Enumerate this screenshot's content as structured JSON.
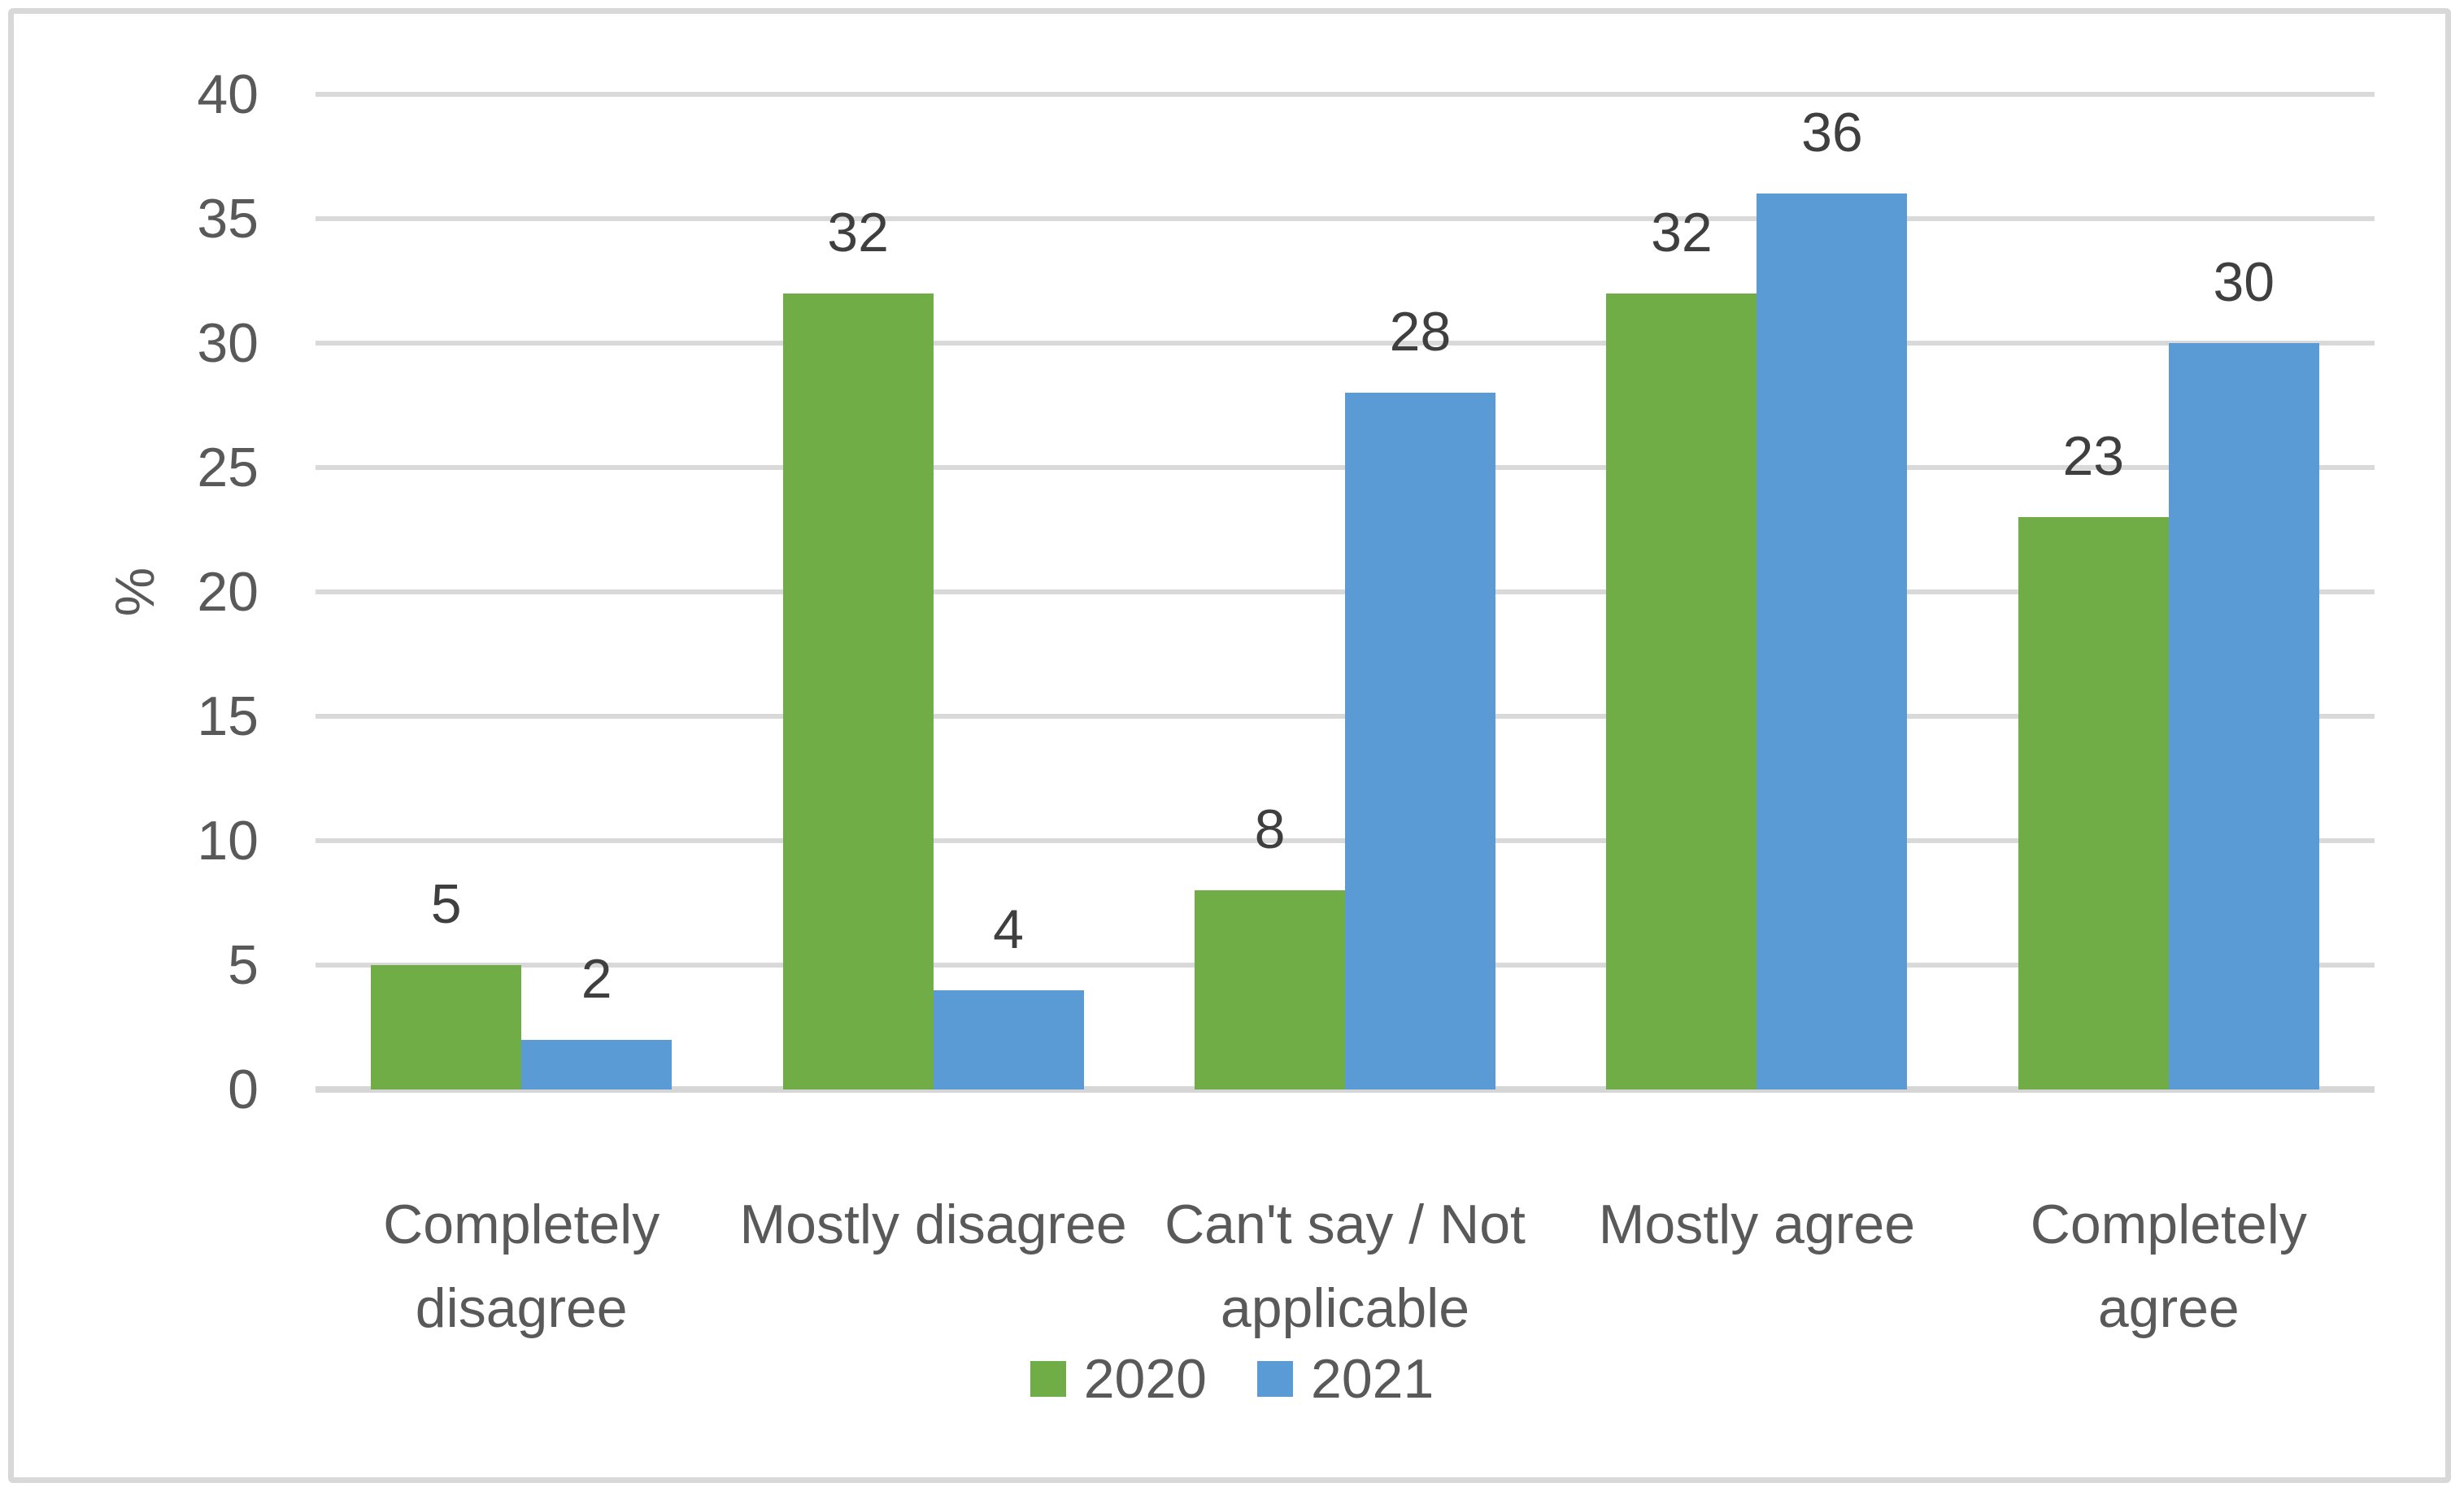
{
  "chart_data": {
    "type": "bar",
    "title": "",
    "xlabel": "",
    "ylabel": "%",
    "ylim": [
      0,
      40
    ],
    "yticks": [
      0,
      5,
      10,
      15,
      20,
      25,
      30,
      35,
      40
    ],
    "grid": true,
    "data_labels": true,
    "legend_position": "bottom-center",
    "categories": [
      "Completely\ndisagree",
      "Mostly disagree",
      "Can't say / Not\napplicable",
      "Mostly agree",
      "Completely\nagree"
    ],
    "series": [
      {
        "name": "2020",
        "color": "#70AD47",
        "values": [
          5,
          32,
          8,
          32,
          23
        ]
      },
      {
        "name": "2021",
        "color": "#5B9BD5",
        "values": [
          2,
          4,
          28,
          36,
          30
        ]
      }
    ]
  },
  "colors": {
    "series_2020": "#70AD47",
    "series_2021": "#5B9BD5",
    "gridline": "#D9D9D9",
    "axis_line": "#D6D6D6",
    "frame_border": "#D8D8D8",
    "tick_text": "#595959",
    "data_label_text": "#3F3F3F",
    "background": "#FFFFFF"
  }
}
